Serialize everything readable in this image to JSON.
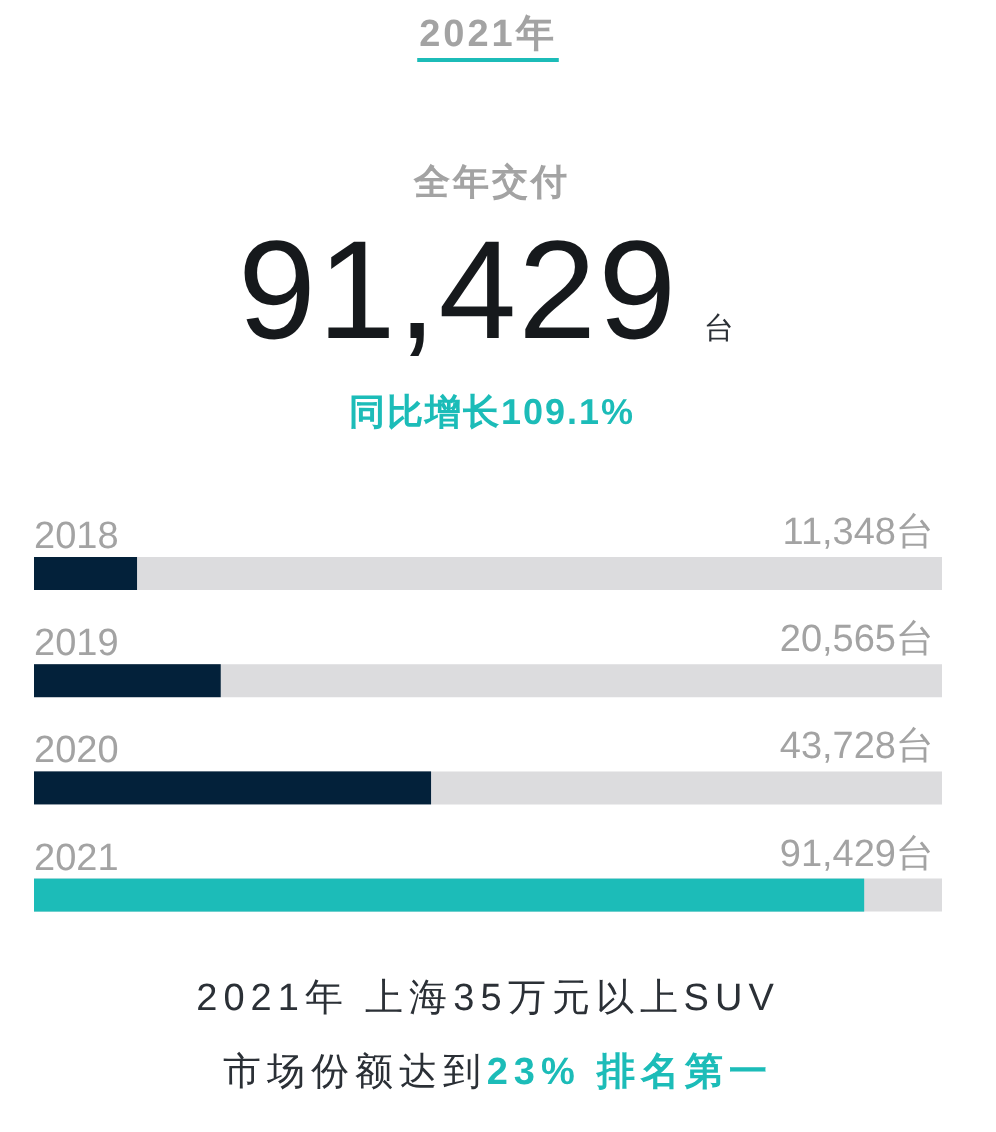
{
  "chart_data": {
    "type": "bar",
    "orientation": "horizontal",
    "title": "2021年",
    "subtitle": "全年交付",
    "annotations": [
      "91,429",
      "台",
      "同比增长109.1%",
      "2021年 上海35万元以上SUV",
      "市场份额达到",
      "23% 排名第一"
    ],
    "categories": [
      "2018",
      "2019",
      "2020",
      "2021"
    ],
    "values": [
      11348,
      20565,
      43728,
      91429
    ],
    "colors": [
      "#03213a",
      "#03213a",
      "#03213a",
      "#1cbcb8"
    ],
    "value_labels": [
      "11,348台",
      "20,565台",
      "43,728台",
      "91,429台"
    ],
    "bands": [
      {
        "axis": "x",
        "from": 0,
        "to": 100000,
        "color": "#dcdcde"
      }
    ],
    "xlim": [
      0,
      100000
    ],
    "tick_labels": "y"
  }
}
